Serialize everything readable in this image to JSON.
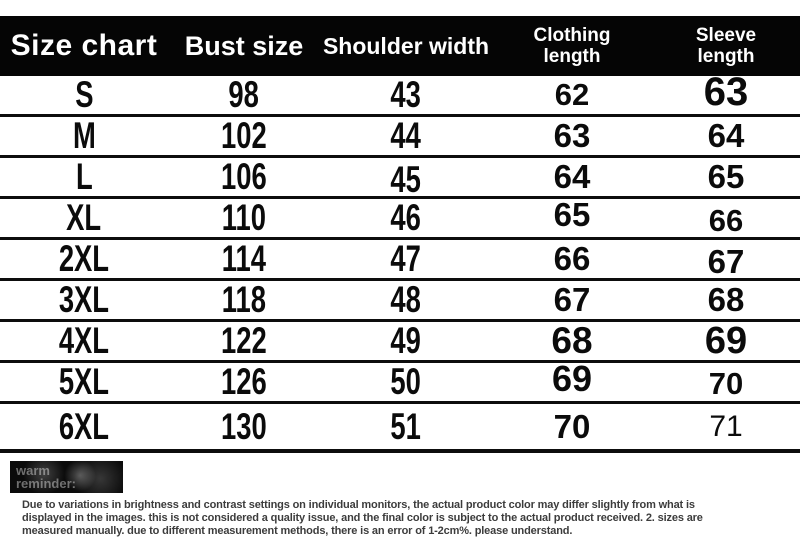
{
  "chart_data": {
    "type": "table",
    "title": "Size chart",
    "columns": [
      "Size chart",
      "Bust size",
      "Shoulder width",
      "Clothing length",
      "Sleeve length"
    ],
    "rows": [
      [
        "S",
        "98",
        "43",
        "62",
        "63"
      ],
      [
        "M",
        "102",
        "44",
        "63",
        "64"
      ],
      [
        "L",
        "106",
        "45",
        "64",
        "65"
      ],
      [
        "XL",
        "110",
        "46",
        "65",
        "66"
      ],
      [
        "2XL",
        "114",
        "47",
        "66",
        "67"
      ],
      [
        "3XL",
        "118",
        "48",
        "67",
        "68"
      ],
      [
        "4XL",
        "122",
        "49",
        "68",
        "69"
      ],
      [
        "5XL",
        "126",
        "50",
        "69",
        "70"
      ],
      [
        "6XL",
        "130",
        "51",
        "70",
        "71"
      ]
    ]
  },
  "badge": {
    "line1": "warm",
    "line2": "reminder:"
  },
  "disclaimer": {
    "lines": [
      "Due to variations in brightness and contrast settings on individual monitors, the actual product color may differ slightly from what is",
      "displayed in the images. this is not considered a quality issue, and the final color is subject to the actual product received. 2. sizes are",
      "measured manually. due to different measurement methods, there is an error of 1-2cm%. please understand."
    ]
  },
  "colors": {
    "header_bg": "#050505",
    "header_text": "#ffffff",
    "rule": "#0d0d0d",
    "num": "#0b0b0b",
    "badge_bg": "#0b0b0b",
    "disclaimer": "#3c3c3c"
  }
}
